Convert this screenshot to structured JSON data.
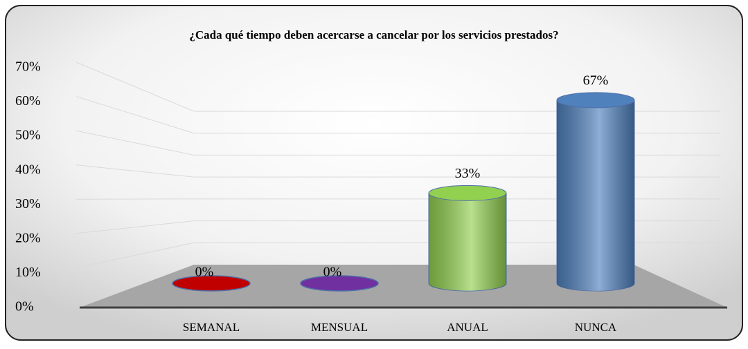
{
  "chart_data": {
    "type": "bar",
    "title": "¿Cada qué tiempo deben acercarse a cancelar por los servicios prestados?",
    "categories": [
      "SEMANAL",
      "MENSUAL",
      "ANUAL",
      "NUNCA"
    ],
    "values": [
      0,
      0,
      33,
      67
    ],
    "value_labels": [
      "0%",
      "0%",
      "33%",
      "67%"
    ],
    "colors": [
      "#c00000",
      "#7030a0",
      "#92d050",
      "#4f81bd"
    ],
    "ylim": [
      0,
      70
    ],
    "yticks": [
      {
        "value": 0,
        "label": "0%"
      },
      {
        "value": 10,
        "label": "10%"
      },
      {
        "value": 20,
        "label": "20%"
      },
      {
        "value": 30,
        "label": "30%"
      },
      {
        "value": 40,
        "label": "40%"
      },
      {
        "value": 50,
        "label": "50%"
      },
      {
        "value": 60,
        "label": "60%"
      },
      {
        "value": 70,
        "label": "70%"
      }
    ],
    "grid": true
  }
}
